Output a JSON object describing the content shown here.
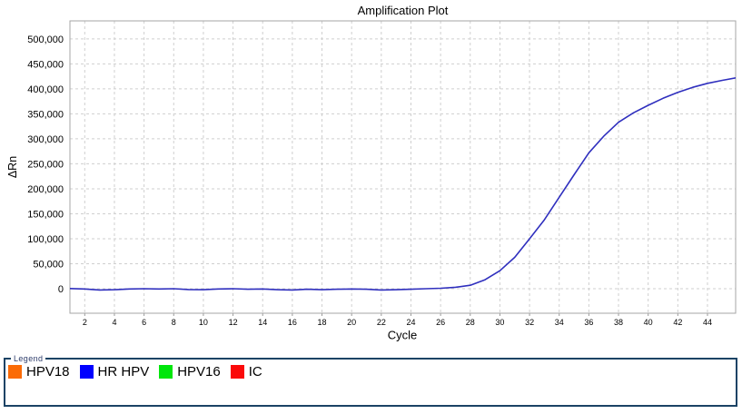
{
  "title": "Amplification Plot",
  "axes": {
    "x_label": "Cycle",
    "y_label": "ΔRn"
  },
  "chart_data": {
    "type": "line",
    "title": "Amplification Plot",
    "xlabel": "Cycle",
    "ylabel": "ΔRn",
    "grid": true,
    "legend_position": "bottom",
    "x_range": [
      1,
      45.9
    ],
    "y_range": [
      -49000,
      536000
    ],
    "x_ticks": [
      2,
      4,
      6,
      8,
      10,
      12,
      14,
      16,
      18,
      20,
      22,
      24,
      26,
      28,
      30,
      32,
      34,
      36,
      38,
      40,
      42,
      44
    ],
    "y_ticks": [
      {
        "value": 0,
        "label": "0"
      },
      {
        "value": 50000,
        "label": "50,000"
      },
      {
        "value": 100000,
        "label": "100,000"
      },
      {
        "value": 150000,
        "label": "150,000"
      },
      {
        "value": 200000,
        "label": "200,000"
      },
      {
        "value": 250000,
        "label": "250,000"
      },
      {
        "value": 300000,
        "label": "300,000"
      },
      {
        "value": 350000,
        "label": "350,000"
      },
      {
        "value": 400000,
        "label": "400,000"
      },
      {
        "value": 450000,
        "label": "450,000"
      },
      {
        "value": 500000,
        "label": "500,000"
      }
    ],
    "series": [
      {
        "name": "HR HPV",
        "color": "#2F2FBE",
        "x": [
          1,
          2,
          3,
          4,
          5,
          6,
          7,
          8,
          9,
          10,
          11,
          12,
          13,
          14,
          15,
          16,
          17,
          18,
          19,
          20,
          21,
          22,
          23,
          24,
          25,
          26,
          27,
          28,
          29,
          30,
          31,
          32,
          33,
          34,
          35,
          36,
          37,
          38,
          39,
          40,
          41,
          42,
          43,
          44,
          45
        ],
        "values": [
          500,
          -500,
          -2500,
          -2000,
          -500,
          0,
          -500,
          0,
          -1500,
          -2000,
          -500,
          0,
          -1000,
          -500,
          -2000,
          -2500,
          -1000,
          -2000,
          -1000,
          -500,
          -1000,
          -2500,
          -2000,
          -1000,
          0,
          1000,
          3000,
          7000,
          18000,
          36000,
          63000,
          100000,
          138000,
          183000,
          228000,
          272000,
          305000,
          333000,
          352000,
          367000,
          381000,
          393000,
          403000,
          411000,
          417000
        ]
      }
    ]
  },
  "legend": {
    "box_label": "Legend",
    "items": [
      {
        "label": "HPV18",
        "color": "#FB6B06"
      },
      {
        "label": "HR HPV",
        "color": "#0000FF"
      },
      {
        "label": "HPV16",
        "color": "#00E60C"
      },
      {
        "label": "IC",
        "color": "#FB0A0A"
      }
    ]
  }
}
